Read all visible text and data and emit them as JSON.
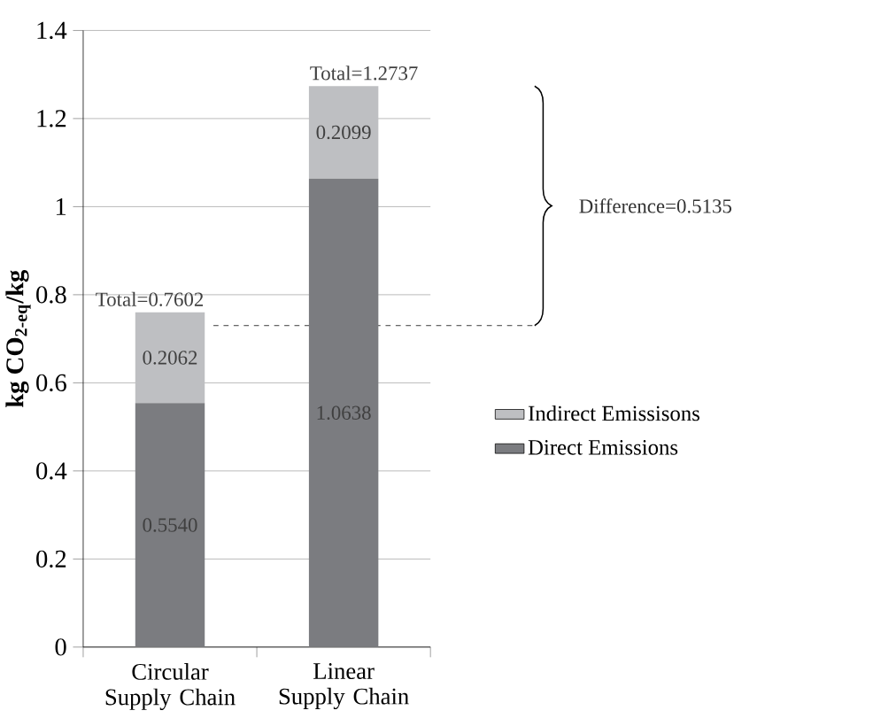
{
  "chart_data": {
    "type": "bar",
    "stacked": true,
    "categories": [
      "Circular Supply Chain",
      "Linear Supply Chain"
    ],
    "series": [
      {
        "name": "Direct Emissions",
        "color": "#7b7c80",
        "values": [
          0.554,
          1.0638
        ],
        "value_labels": [
          "0.5540",
          "1.0638"
        ]
      },
      {
        "name": "Indirect Emissisons",
        "color": "#bebfc2",
        "values": [
          0.2062,
          0.2099
        ],
        "value_labels": [
          "0.2062",
          "0.2099"
        ]
      }
    ],
    "ylabel": "kg CO$_{2-eq}$/kg",
    "ylim": [
      0,
      1.4
    ],
    "yticks": [
      0,
      0.2,
      0.4,
      0.6,
      0.8,
      1,
      1.2,
      1.4
    ],
    "grid": "y",
    "legend": "right",
    "ref_lines": [
      {
        "axis": "y",
        "value": 0.73,
        "line_style": "dashed",
        "color": "#000000"
      }
    ],
    "totals": [
      "Total=0.7602",
      "Total=1.2737"
    ],
    "annotations": [
      "Difference=0.5135"
    ]
  }
}
